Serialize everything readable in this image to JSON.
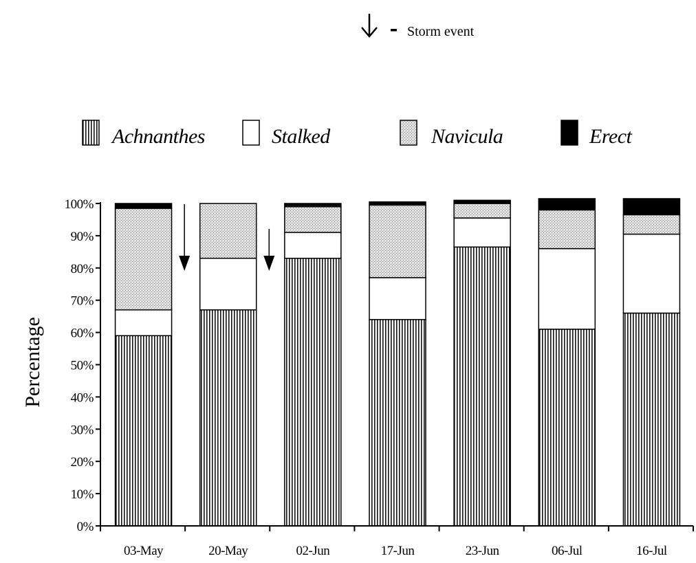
{
  "chart_data": {
    "type": "bar",
    "stacked": true,
    "ylabel": "Percentage",
    "ylim": [
      0,
      100
    ],
    "yticks": [
      "0%",
      "10%",
      "20%",
      "30%",
      "40%",
      "50%",
      "60%",
      "70%",
      "80%",
      "90%",
      "100%"
    ],
    "categories": [
      "03-May",
      "20-May",
      "02-Jun",
      "17-Jun",
      "23-Jun",
      "06-Jul",
      "16-Jul"
    ],
    "series": [
      {
        "name": "Achnanthes",
        "values": [
          59,
          67,
          83,
          64,
          86.5,
          61,
          66
        ],
        "pattern": "vertical-stripes"
      },
      {
        "name": "Stalked",
        "values": [
          8,
          16,
          8,
          13,
          9,
          25,
          24.5
        ],
        "pattern": "white"
      },
      {
        "name": "Navicula",
        "values": [
          31.5,
          17,
          8,
          22.5,
          4.5,
          12,
          6
        ],
        "pattern": "stipple"
      },
      {
        "name": "Erect",
        "values": [
          1.5,
          0,
          1,
          1,
          1,
          3.5,
          5
        ],
        "pattern": "black"
      }
    ],
    "annotations": [
      {
        "type": "arrow",
        "label": "Storm event",
        "after_category": "03-May"
      },
      {
        "type": "arrow",
        "label": "Storm event",
        "after_category": "20-May"
      }
    ],
    "storm_legend": "Storm event",
    "legend_position": "top",
    "grid": false
  }
}
